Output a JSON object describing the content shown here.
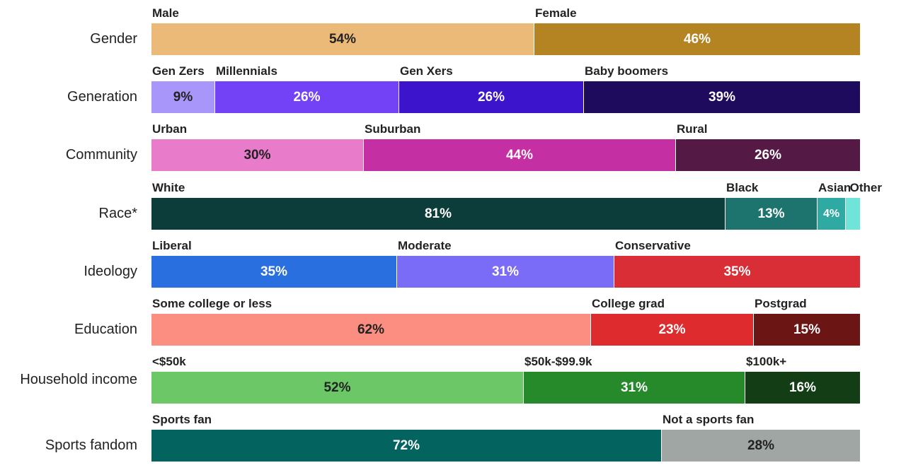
{
  "chart_data": {
    "type": "bar",
    "orientation": "horizontal",
    "stacked": true,
    "rows": [
      {
        "label": "Gender",
        "segments": [
          {
            "name": "Male",
            "value": 54,
            "text": "54%",
            "color": "#ECBA78",
            "text_color": "#222222"
          },
          {
            "name": "Female",
            "value": 46,
            "text": "46%",
            "color": "#B38421",
            "text_color": "#ffffff"
          }
        ]
      },
      {
        "label": "Generation",
        "segments": [
          {
            "name": "Gen Zers",
            "value": 9,
            "text": "9%",
            "color": "#A996FB",
            "text_color": "#222222"
          },
          {
            "name": "Millennials",
            "value": 26,
            "text": "26%",
            "color": "#7442F6",
            "text_color": "#ffffff"
          },
          {
            "name": "Gen Xers",
            "value": 26,
            "text": "26%",
            "color": "#3B14CC",
            "text_color": "#ffffff"
          },
          {
            "name": "Baby boomers",
            "value": 39,
            "text": "39%",
            "color": "#1E0B5E",
            "text_color": "#ffffff"
          }
        ]
      },
      {
        "label": "Community",
        "segments": [
          {
            "name": "Urban",
            "value": 30,
            "text": "30%",
            "color": "#E97BCB",
            "text_color": "#222222"
          },
          {
            "name": "Suburban",
            "value": 44,
            "text": "44%",
            "color": "#C42FA4",
            "text_color": "#ffffff"
          },
          {
            "name": "Rural",
            "value": 26,
            "text": "26%",
            "color": "#541A45",
            "text_color": "#ffffff"
          }
        ]
      },
      {
        "label": "Race*",
        "segments": [
          {
            "name": "White",
            "value": 81,
            "text": "81%",
            "color": "#0D3D3A",
            "text_color": "#ffffff"
          },
          {
            "name": "Black",
            "value": 13,
            "text": "13%",
            "color": "#1D736E",
            "text_color": "#ffffff"
          },
          {
            "name": "Asian",
            "value": 4,
            "text": "4%",
            "color": "#2FAAA2",
            "text_color": "#ffffff"
          },
          {
            "name": "Other",
            "value": 2,
            "text": "",
            "color": "#6EE5D8",
            "text_color": "#222222"
          }
        ]
      },
      {
        "label": "Ideology",
        "segments": [
          {
            "name": "Liberal",
            "value": 35,
            "text": "35%",
            "color": "#2A6FE0",
            "text_color": "#ffffff"
          },
          {
            "name": "Moderate",
            "value": 31,
            "text": "31%",
            "color": "#7B6CF8",
            "text_color": "#ffffff"
          },
          {
            "name": "Conservative",
            "value": 35,
            "text": "35%",
            "color": "#D92E35",
            "text_color": "#ffffff"
          }
        ]
      },
      {
        "label": "Education",
        "segments": [
          {
            "name": "Some college or less",
            "value": 62,
            "text": "62%",
            "color": "#FB8E80",
            "text_color": "#222222"
          },
          {
            "name": "College grad",
            "value": 23,
            "text": "23%",
            "color": "#DD2B2E",
            "text_color": "#ffffff"
          },
          {
            "name": "Postgrad",
            "value": 15,
            "text": "15%",
            "color": "#6C1515",
            "text_color": "#ffffff"
          }
        ]
      },
      {
        "label": "Household income",
        "segments": [
          {
            "name": "<$50k",
            "value": 52,
            "text": "52%",
            "color": "#6CC867",
            "text_color": "#222222"
          },
          {
            "name": "$50k-$99.9k",
            "value": 31,
            "text": "31%",
            "color": "#268A2B",
            "text_color": "#ffffff"
          },
          {
            "name": "$100k+",
            "value": 16,
            "text": "16%",
            "color": "#133D14",
            "text_color": "#ffffff"
          }
        ]
      },
      {
        "label": "Sports fandom",
        "segments": [
          {
            "name": "Sports fan",
            "value": 72,
            "text": "72%",
            "color": "#02635F",
            "text_color": "#ffffff"
          },
          {
            "name": "Not a sports fan",
            "value": 28,
            "text": "28%",
            "color": "#9FA6A4",
            "text_color": "#222222"
          }
        ]
      }
    ]
  }
}
